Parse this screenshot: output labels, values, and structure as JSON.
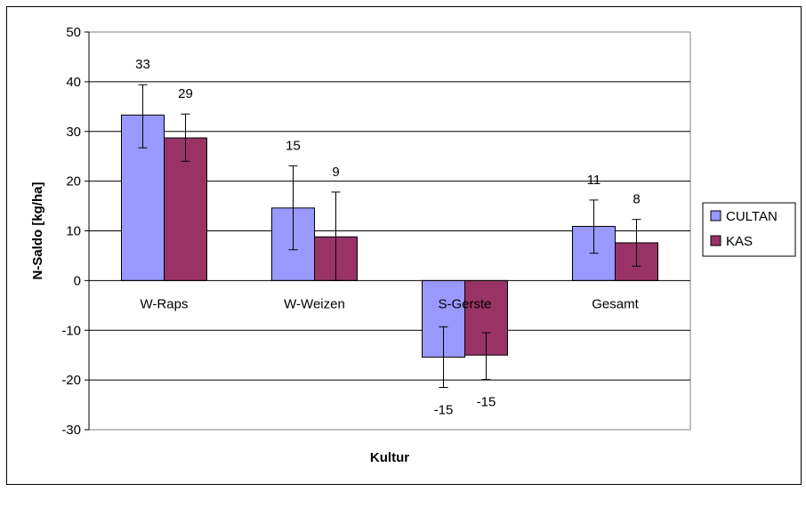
{
  "chart_data": {
    "type": "bar",
    "xlabel": "Kultur",
    "ylabel": "N-Saldo [kg/ha]",
    "ylim": [
      -30,
      50
    ],
    "yticks": [
      50,
      40,
      30,
      20,
      10,
      0,
      -10,
      -20,
      -30
    ],
    "grid": true,
    "legend_position": "right",
    "categories": [
      "W-Raps",
      "W-Weizen",
      "S-Gerste",
      "Gesamt"
    ],
    "series": [
      {
        "name": "CULTAN",
        "color": "#9999ff",
        "values": [
          33.3,
          14.6,
          -15.4,
          10.9
        ],
        "labels": [
          "33",
          "15",
          "-15",
          "11"
        ],
        "error_low": [
          26.7,
          6.2,
          -21.5,
          5.5
        ],
        "error_high": [
          39.4,
          23.1,
          -9.3,
          16.2
        ]
      },
      {
        "name": "KAS",
        "color": "#993366",
        "values": [
          28.7,
          8.8,
          -15.0,
          7.6
        ],
        "labels": [
          "29",
          "9",
          "-15",
          "8"
        ],
        "error_low": [
          24.0,
          0.0,
          -19.9,
          2.9
        ],
        "error_high": [
          33.5,
          17.8,
          -10.5,
          12.3
        ]
      }
    ]
  }
}
